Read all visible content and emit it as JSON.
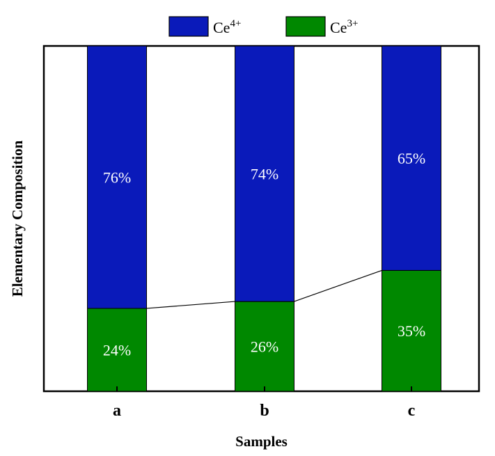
{
  "chart_data": {
    "type": "bar",
    "stacked": true,
    "categories": [
      "a",
      "b",
      "c"
    ],
    "series": [
      {
        "name": "Ce",
        "sup": "3+",
        "color": "#008800",
        "values": [
          24,
          26,
          35
        ],
        "labels": [
          "24%",
          "26%",
          "35%"
        ]
      },
      {
        "name": "Ce",
        "sup": "4+",
        "color": "#0a1aba",
        "values": [
          76,
          74,
          65
        ],
        "labels": [
          "76%",
          "74%",
          "65%"
        ]
      }
    ],
    "legend_order": [
      1,
      0
    ],
    "legend_position": "top-center",
    "xlabel": "Samples",
    "ylabel": "Elementary Composition",
    "ylim": [
      0,
      100
    ],
    "connector_line": true,
    "grid": false
  }
}
